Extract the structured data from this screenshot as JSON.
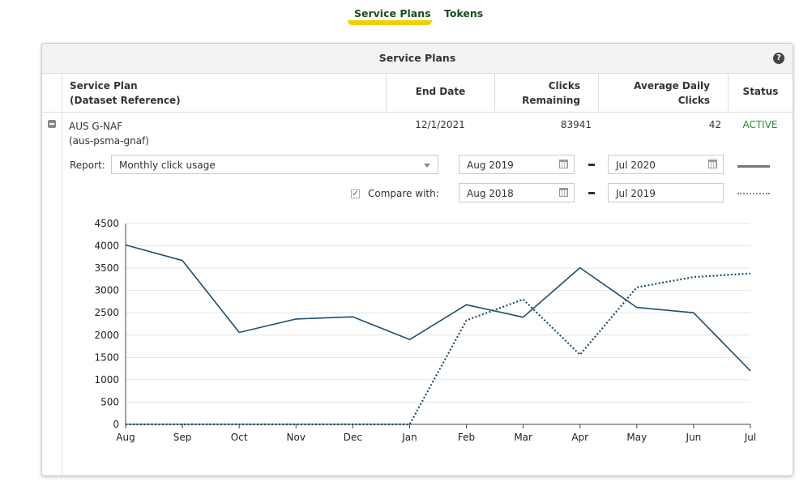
{
  "tabs": {
    "plans": "Service Plans",
    "tokens": "Tokens"
  },
  "panel": {
    "title": "Service Plans",
    "help": "?"
  },
  "table": {
    "headers": {
      "plan_line1": "Service Plan",
      "plan_line2": "(Dataset Reference)",
      "end_date": "End Date",
      "clicks_line1": "Clicks",
      "clicks_line2": "Remaining",
      "avg_line1": "Average Daily",
      "avg_line2": "Clicks",
      "status": "Status"
    },
    "row": {
      "name": "AUS G-NAF",
      "reference": "(aus-psma-gnaf)",
      "end_date": "12/1/2021",
      "clicks_remaining": "83941",
      "avg_daily_clicks": "42",
      "status": "ACTIVE"
    }
  },
  "report": {
    "label": "Report:",
    "selected": "Monthly click usage",
    "from": "Aug  2019",
    "to": "Jul  2020",
    "compare_label": "Compare with:",
    "compare_checked": true,
    "compare_from": "Aug  2018",
    "compare_to": "Jul  2019"
  },
  "colors": {
    "primary_line": "#1f4e6e",
    "active_status": "#2a8a2a",
    "tab_underline": "#f0d000"
  },
  "chart_data": {
    "type": "line",
    "categories": [
      "Aug",
      "Sep",
      "Oct",
      "Nov",
      "Dec",
      "Jan",
      "Feb",
      "Mar",
      "Apr",
      "May",
      "Jun",
      "Jul"
    ],
    "ylim": [
      0,
      4500
    ],
    "yticks": [
      0,
      500,
      1000,
      1500,
      2000,
      2500,
      3000,
      3500,
      4000,
      4500
    ],
    "grid": true,
    "series": [
      {
        "values": [
          4020,
          3670,
          2060,
          2360,
          2410,
          1900,
          2680,
          2400,
          3510,
          2620,
          2500,
          1200
        ],
        "style": "solid"
      },
      {
        "values": [
          0,
          0,
          0,
          0,
          0,
          0,
          2330,
          2800,
          1560,
          3070,
          3300,
          3380
        ],
        "style": "dotted"
      }
    ]
  }
}
